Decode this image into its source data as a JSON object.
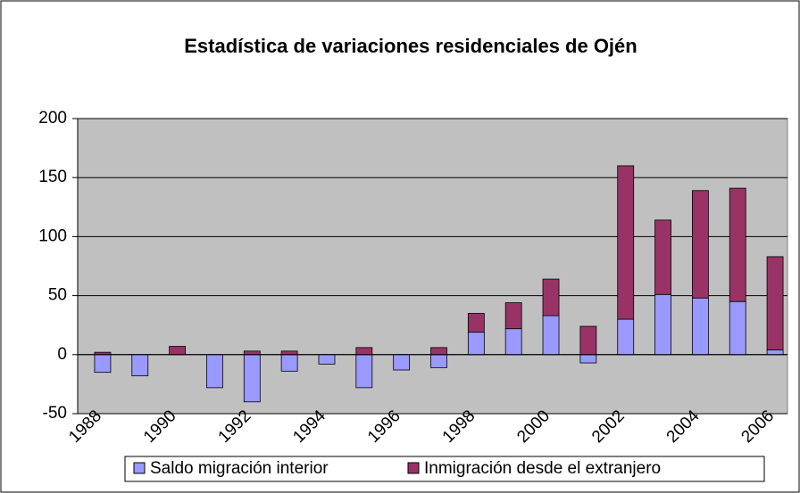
{
  "chart_data": {
    "type": "stacked_bar",
    "title": "Estadística de variaciones residenciales de Ojén",
    "categories": [
      "1988",
      null,
      "1990",
      null,
      "1992",
      null,
      "1994",
      null,
      "1996",
      null,
      "1998",
      null,
      "2000",
      null,
      "2002",
      null,
      "2004",
      null,
      "2006"
    ],
    "series": [
      {
        "name": "Saldo migración interior",
        "color": "#9999ff",
        "values": [
          -15,
          -18,
          0,
          -28,
          -40,
          -14,
          -8,
          -28,
          -13,
          -11,
          19,
          22,
          33,
          -7,
          30,
          51,
          48,
          45,
          4
        ]
      },
      {
        "name": "Inmigración desde el extranjero",
        "color": "#993366",
        "values": [
          2,
          0,
          7,
          0,
          3,
          3,
          0,
          6,
          0,
          6,
          16,
          22,
          31,
          24,
          130,
          63,
          91,
          96,
          79
        ]
      }
    ],
    "ylim": [
      -50,
      200
    ],
    "yticks": [
      -50,
      0,
      50,
      100,
      150,
      200
    ],
    "grid": true,
    "legend": "bottom",
    "plot_background": "#c0c0c0"
  }
}
